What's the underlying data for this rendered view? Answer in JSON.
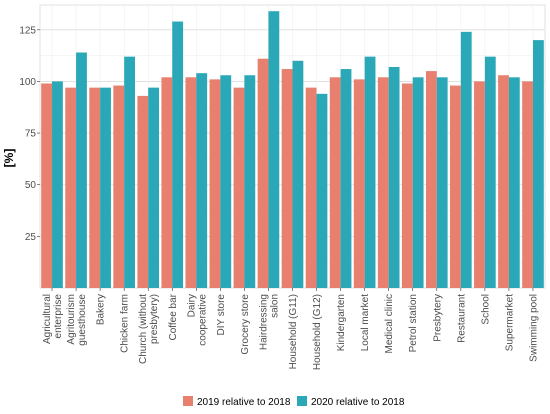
{
  "chart_data": {
    "type": "bar",
    "title": "",
    "xlabel": "",
    "ylabel": "[%]",
    "ylim": [
      0,
      137
    ],
    "yticks": [
      25,
      50,
      75,
      100,
      125
    ],
    "grid": true,
    "legend_position": "bottom",
    "categories": [
      "Agricultural enterprise",
      "Agritourism guesthouse",
      "Bakery",
      "Chicken farm",
      "Church (without presbytery)",
      "Coffee bar",
      "Dairy cooperative",
      "DIY store",
      "Grocery store",
      "Hairdressing salon",
      "Household (G11)",
      "Household (G12)",
      "Kindergarten",
      "Local market",
      "Medical clinic",
      "Petrol station",
      "Presbytery",
      "Restaurant",
      "School",
      "Supermarket",
      "Swimming pool"
    ],
    "series": [
      {
        "name": "2019 relative to 2018",
        "color": "#E8806F",
        "values": [
          99,
          97,
          97,
          98,
          93,
          102,
          102,
          101,
          97,
          111,
          106,
          97,
          102,
          101,
          102,
          99,
          105,
          98,
          100,
          103,
          100
        ]
      },
      {
        "name": "2020 relative to 2018",
        "color": "#2BA8B8",
        "values": [
          100,
          114,
          97,
          112,
          97,
          129,
          104,
          103,
          103,
          134,
          110,
          94,
          106,
          112,
          107,
          102,
          102,
          124,
          112,
          102,
          120
        ]
      }
    ]
  }
}
